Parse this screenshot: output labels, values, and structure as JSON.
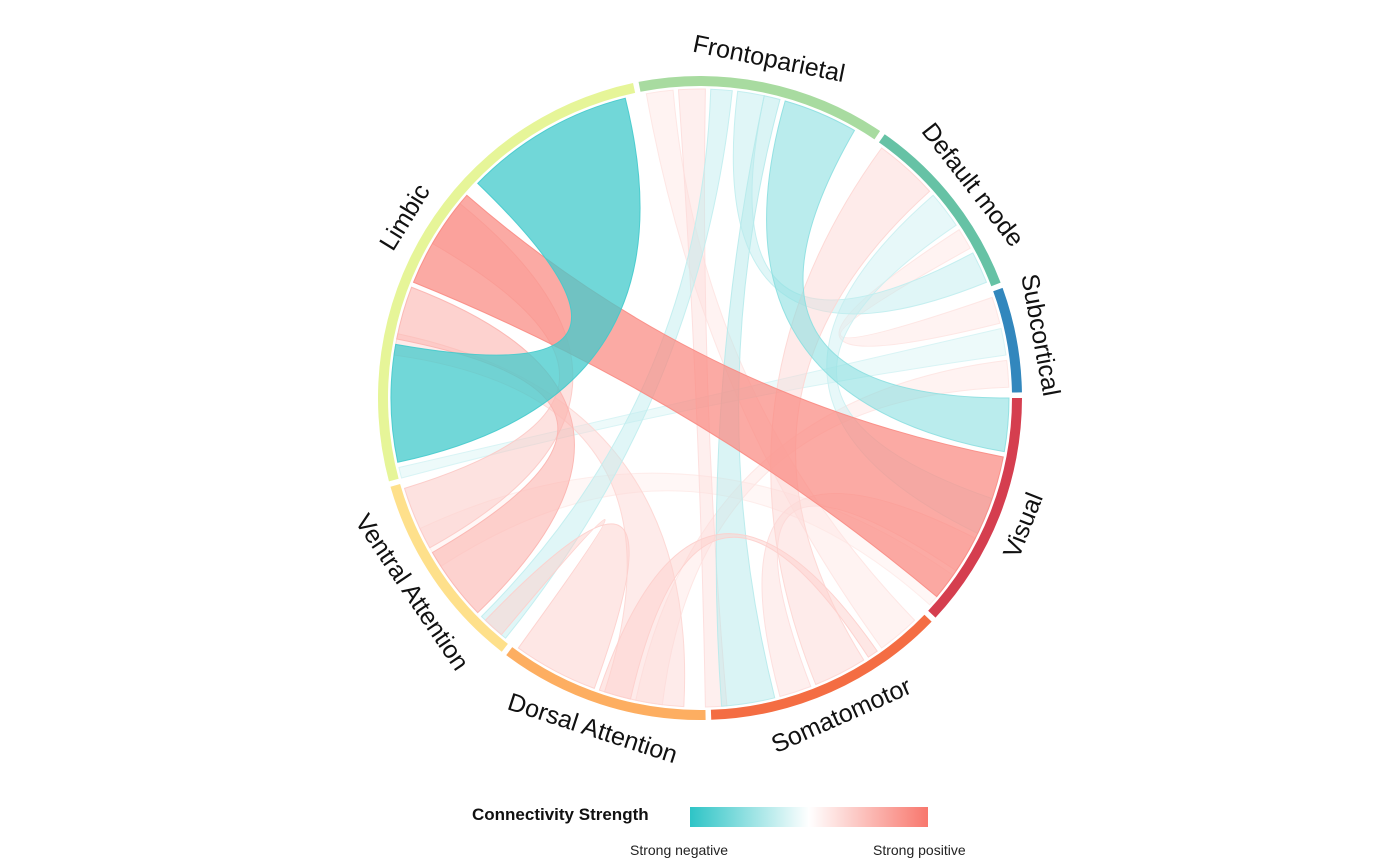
{
  "chart_data": {
    "type": "chord",
    "title": "",
    "sectors": [
      {
        "name": "Frontoparietal",
        "color": "#a8dba0",
        "start_deg": -11,
        "end_deg": 34
      },
      {
        "name": "Default mode",
        "color": "#66c2a5",
        "start_deg": 35,
        "end_deg": 69
      },
      {
        "name": "Subcortical",
        "color": "#3287bd",
        "start_deg": 70,
        "end_deg": 89
      },
      {
        "name": "Visual",
        "color": "#d53e4f",
        "start_deg": 90,
        "end_deg": 133
      },
      {
        "name": "Somatomotor",
        "color": "#f46d43",
        "start_deg": 134,
        "end_deg": 178
      },
      {
        "name": "Dorsal Attention",
        "color": "#fdae61",
        "start_deg": 179,
        "end_deg": 217
      },
      {
        "name": "Ventral Attention",
        "color": "#fee08b",
        "start_deg": 218,
        "end_deg": 254
      },
      {
        "name": "Limbic",
        "color": "#e6f598",
        "start_deg": 255,
        "end_deg": 348
      }
    ],
    "links": [
      {
        "from": "Limbic",
        "to": "Visual",
        "strength": 0.85,
        "a": [
          292,
          311
        ],
        "b": [
          101,
          130
        ]
      },
      {
        "from": "Limbic",
        "to": "Limbic",
        "strength": -0.9,
        "a": [
          314,
          346
        ],
        "b": [
          258,
          280
        ]
      },
      {
        "from": "Limbic",
        "to": "Ventral Attention",
        "strength": 0.55,
        "a": [
          281,
          291
        ],
        "b": [
          226,
          240
        ]
      },
      {
        "from": "Limbic",
        "to": "Dorsal Attention",
        "strength": 0.3,
        "a": [
          278,
          282
        ],
        "b": [
          183,
          198
        ]
      },
      {
        "from": "Ventral Attention",
        "to": "Limbic",
        "strength": 0.4,
        "a": [
          241,
          253
        ],
        "b": [
          300,
          309
        ]
      },
      {
        "from": "Ventral Attention",
        "to": "Dorsal Attention",
        "strength": 0.35,
        "a": [
          220,
          224
        ],
        "b": [
          200,
          216
        ]
      },
      {
        "from": "Ventral Attention",
        "to": "Frontoparietal",
        "strength": -0.3,
        "a": [
          219,
          225
        ],
        "b": [
          2,
          6
        ]
      },
      {
        "from": "Frontoparietal",
        "to": "Visual",
        "strength": -0.55,
        "a": [
          16,
          30
        ],
        "b": [
          90,
          100
        ]
      },
      {
        "from": "Frontoparietal",
        "to": "Somatomotor",
        "strength": 0.2,
        "a": [
          -10,
          -5
        ],
        "b": [
          136,
          144
        ]
      },
      {
        "from": "Frontoparietal",
        "to": "Dorsal Attention",
        "strength": 0.25,
        "a": [
          -4,
          1
        ],
        "b": [
          175,
          179
        ]
      },
      {
        "from": "Frontoparietal",
        "to": "Default mode",
        "strength": -0.3,
        "a": [
          7,
          12
        ],
        "b": [
          62,
          68
        ]
      },
      {
        "from": "Frontoparietal",
        "to": "Somatomotor",
        "strength": -0.35,
        "a": [
          12,
          15
        ],
        "b": [
          166,
          176
        ]
      },
      {
        "from": "Default mode",
        "to": "Somatomotor",
        "strength": 0.3,
        "a": [
          36,
          48
        ],
        "b": [
          148,
          158
        ]
      },
      {
        "from": "Default mode",
        "to": "Visual",
        "strength": -0.25,
        "a": [
          49,
          56
        ],
        "b": [
          109,
          116
        ]
      },
      {
        "from": "Default mode",
        "to": "Subcortical",
        "strength": 0.2,
        "a": [
          57,
          61
        ],
        "b": [
          71,
          76
        ]
      },
      {
        "from": "Subcortical",
        "to": "Limbic",
        "strength": -0.2,
        "a": [
          77,
          82
        ],
        "b": [
          255,
          257
        ]
      },
      {
        "from": "Subcortical",
        "to": "Dorsal Attention",
        "strength": 0.2,
        "a": [
          83,
          88
        ],
        "b": [
          187,
          192
        ]
      },
      {
        "from": "Visual",
        "to": "Somatomotor",
        "strength": 0.25,
        "a": [
          117,
          124
        ],
        "b": [
          159,
          165
        ]
      },
      {
        "from": "Visual",
        "to": "Ventral Attention",
        "strength": 0.15,
        "a": [
          125,
          132
        ],
        "b": [
          237,
          245
        ]
      },
      {
        "from": "Somatomotor",
        "to": "Dorsal Attention",
        "strength": 0.35,
        "a": [
          145,
          147
        ],
        "b": [
          193,
          199
        ]
      }
    ],
    "legend": {
      "title": "Connectivity Strength",
      "low_label": "Strong negative",
      "high_label": "Strong positive",
      "low_color": "#2ec4c6",
      "mid_color": "#ffffff",
      "high_color": "#f8776d"
    }
  }
}
